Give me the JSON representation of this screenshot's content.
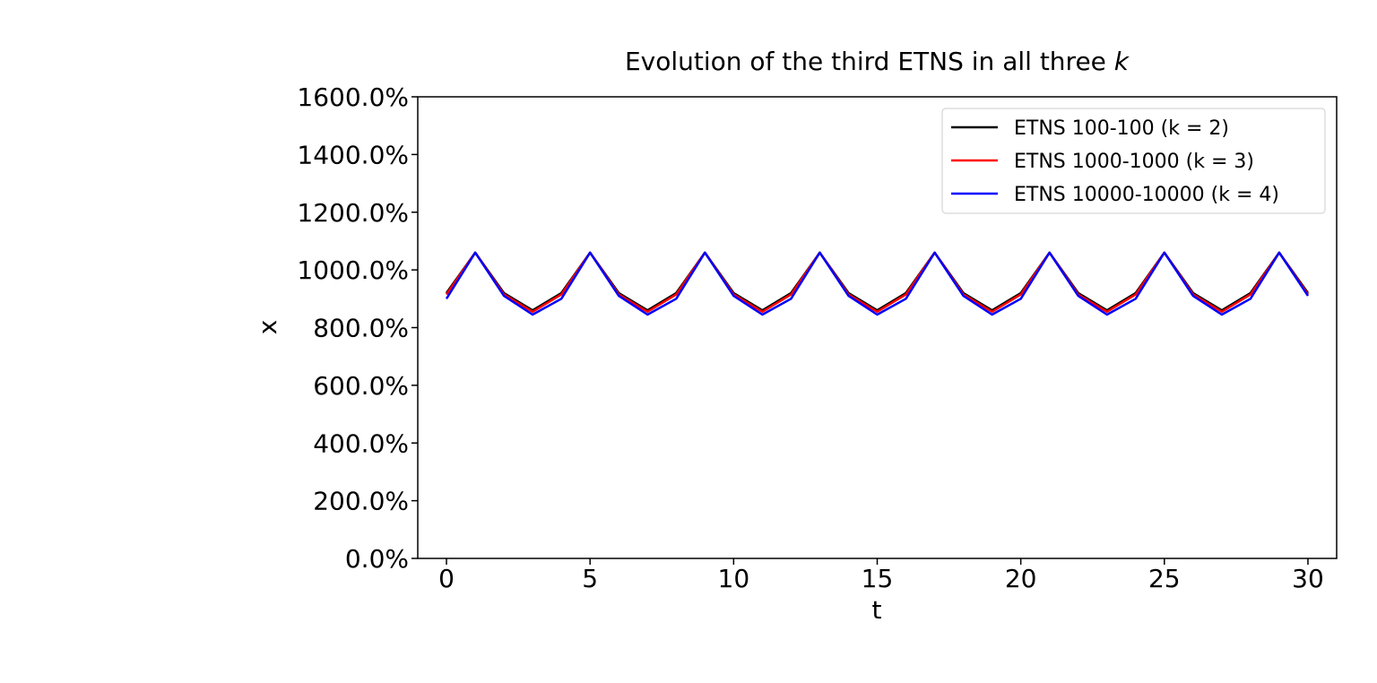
{
  "chart_data": {
    "type": "line",
    "title": "Evolution of the third ETNS in all three ",
    "title_italic": "k",
    "xlabel": "t",
    "ylabel": "x",
    "xlim": [
      -1,
      31
    ],
    "ylim": [
      0,
      16
    ],
    "x_ticks": [
      0,
      5,
      10,
      15,
      20,
      25,
      30
    ],
    "x_tick_labels": [
      "0",
      "5",
      "10",
      "15",
      "20",
      "25",
      "30"
    ],
    "y_ticks": [
      0,
      2,
      4,
      6,
      8,
      10,
      12,
      14,
      16
    ],
    "y_tick_labels": [
      "0.0%",
      "200.0%",
      "400.0%",
      "600.0%",
      "800.0%",
      "1000.0%",
      "1200.0%",
      "1400.0%",
      "1600.0%"
    ],
    "grid": false,
    "legend_position": "top-right",
    "x": [
      0,
      1,
      2,
      3,
      4,
      5,
      6,
      7,
      8,
      9,
      10,
      11,
      12,
      13,
      14,
      15,
      16,
      17,
      18,
      19,
      20,
      21,
      22,
      23,
      24,
      25,
      26,
      27,
      28,
      29,
      30
    ],
    "series": [
      {
        "name": "ETNS 100-100 (k = 2)",
        "color": "#000000",
        "values": [
          9.2,
          10.6,
          9.2,
          8.6,
          9.2,
          10.6,
          9.2,
          8.6,
          9.2,
          10.6,
          9.2,
          8.6,
          9.2,
          10.6,
          9.2,
          8.6,
          9.2,
          10.6,
          9.2,
          8.6,
          9.2,
          10.6,
          9.2,
          8.6,
          9.2,
          10.6,
          9.2,
          8.6,
          9.2,
          10.6,
          9.2
        ]
      },
      {
        "name": "ETNS 1000-1000 (k = 3)",
        "color": "#ff0000",
        "values": [
          9.15,
          10.6,
          9.15,
          8.55,
          9.15,
          10.6,
          9.15,
          8.55,
          9.15,
          10.6,
          9.15,
          8.55,
          9.15,
          10.6,
          9.15,
          8.55,
          9.15,
          10.6,
          9.15,
          8.55,
          9.15,
          10.6,
          9.15,
          8.55,
          9.15,
          10.6,
          9.15,
          8.55,
          9.15,
          10.6,
          9.15
        ]
      },
      {
        "name": "ETNS 10000-10000 (k = 4)",
        "color": "#0000ff",
        "values": [
          9.0,
          10.6,
          9.1,
          8.45,
          9.0,
          10.6,
          9.1,
          8.45,
          9.0,
          10.6,
          9.1,
          8.45,
          9.0,
          10.6,
          9.1,
          8.45,
          9.0,
          10.6,
          9.1,
          8.45,
          9.0,
          10.6,
          9.1,
          8.45,
          9.0,
          10.6,
          9.1,
          8.45,
          9.0,
          10.6,
          9.1
        ]
      }
    ]
  }
}
